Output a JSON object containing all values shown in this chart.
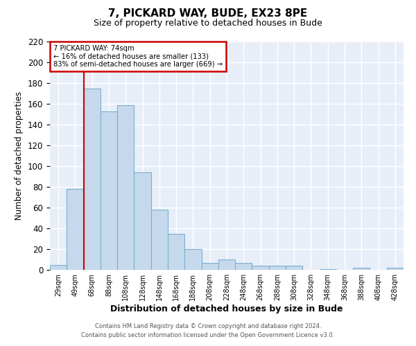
{
  "title": "7, PICKARD WAY, BUDE, EX23 8PE",
  "subtitle": "Size of property relative to detached houses in Bude",
  "xlabel": "Distribution of detached houses by size in Bude",
  "ylabel": "Number of detached properties",
  "bar_labels": [
    "29sqm",
    "49sqm",
    "68sqm",
    "88sqm",
    "108sqm",
    "128sqm",
    "148sqm",
    "168sqm",
    "188sqm",
    "208sqm",
    "228sqm",
    "248sqm",
    "268sqm",
    "288sqm",
    "308sqm",
    "328sqm",
    "348sqm",
    "368sqm",
    "388sqm",
    "408sqm",
    "428sqm"
  ],
  "bar_values": [
    5,
    78,
    175,
    153,
    159,
    94,
    58,
    35,
    20,
    7,
    10,
    7,
    4,
    4,
    4,
    0,
    1,
    0,
    2,
    0,
    2
  ],
  "bar_color": "#c6d9ec",
  "bar_edge_color": "#7aaed0",
  "background_color": "#e8eef8",
  "plot_bg_color": "#e8eef8",
  "grid_color": "#ffffff",
  "annotation_title": "7 PICKARD WAY: 74sqm",
  "annotation_line1": "← 16% of detached houses are smaller (133)",
  "annotation_line2": "83% of semi-detached houses are larger (669) →",
  "annotation_box_color": "#ffffff",
  "annotation_border_color": "#cc0000",
  "marker_line_color": "#cc0000",
  "ylim": [
    0,
    220
  ],
  "yticks": [
    0,
    20,
    40,
    60,
    80,
    100,
    120,
    140,
    160,
    180,
    200,
    220
  ],
  "footnote1": "Contains HM Land Registry data © Crown copyright and database right 2024.",
  "footnote2": "Contains public sector information licensed under the Open Government Licence v3.0.",
  "marker_sqm": 74,
  "bin_width": 20
}
